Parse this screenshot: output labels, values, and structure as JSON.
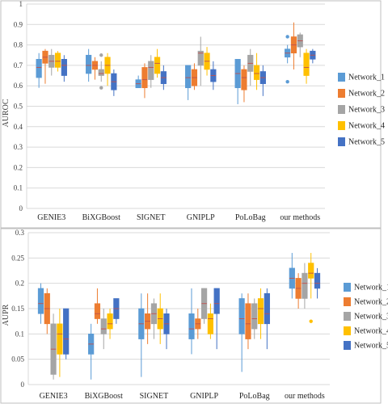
{
  "colors": {
    "Network_1": "#5b9bd5",
    "Network_2": "#ed7d31",
    "Network_3": "#a5a5a5",
    "Network_4": "#ffc000",
    "Network_5": "#4472c4",
    "median": "#c0504d",
    "grid": "#d9d9d9",
    "frame": "#bfbfbf"
  },
  "chart_data": [
    {
      "type": "box",
      "ylabel": "AUROC",
      "ylim": [
        0,
        1
      ],
      "yticks": [
        "0",
        "0.1",
        "0.2",
        "0.3",
        "0.4",
        "0.5",
        "0.6",
        "0.7",
        "0.8",
        "0.9",
        "1"
      ],
      "yticks_values": [
        0,
        0.1,
        0.2,
        0.3,
        0.4,
        0.5,
        0.6,
        0.7,
        0.8,
        0.9,
        1
      ],
      "grid": true,
      "legend_position": "right",
      "categories": [
        "GENIE3",
        "BiXGBoost",
        "SIGNET",
        "GNIPLP",
        "PoLoBag",
        "our methods"
      ],
      "series": [
        {
          "name": "Network_1",
          "boxes": [
            {
              "min": 0.59,
              "q1": 0.64,
              "median": 0.69,
              "q3": 0.73,
              "max": 0.76,
              "outliers": []
            },
            {
              "min": 0.62,
              "q1": 0.66,
              "median": 0.7,
              "q3": 0.75,
              "max": 0.78,
              "outliers": []
            },
            {
              "min": 0.59,
              "q1": 0.59,
              "median": 0.61,
              "q3": 0.63,
              "max": 0.65,
              "outliers": []
            },
            {
              "min": 0.53,
              "q1": 0.59,
              "median": 0.64,
              "q3": 0.7,
              "max": 0.7,
              "outliers": []
            },
            {
              "min": 0.51,
              "q1": 0.59,
              "median": 0.66,
              "q3": 0.73,
              "max": 0.73,
              "outliers": []
            },
            {
              "min": 0.71,
              "q1": 0.74,
              "median": 0.76,
              "q3": 0.78,
              "max": 0.8,
              "outliers": [
                0.84,
                0.62
              ]
            }
          ]
        },
        {
          "name": "Network_2",
          "boxes": [
            {
              "min": 0.61,
              "q1": 0.71,
              "median": 0.74,
              "q3": 0.77,
              "max": 0.78,
              "outliers": []
            },
            {
              "min": 0.63,
              "q1": 0.68,
              "median": 0.7,
              "q3": 0.72,
              "max": 0.74,
              "outliers": []
            },
            {
              "min": 0.54,
              "q1": 0.59,
              "median": 0.63,
              "q3": 0.69,
              "max": 0.71,
              "outliers": []
            },
            {
              "min": 0.58,
              "q1": 0.6,
              "median": 0.64,
              "q3": 0.68,
              "max": 0.71,
              "outliers": []
            },
            {
              "min": 0.52,
              "q1": 0.58,
              "median": 0.64,
              "q3": 0.68,
              "max": 0.7,
              "outliers": []
            },
            {
              "min": 0.68,
              "q1": 0.76,
              "median": 0.8,
              "q3": 0.84,
              "max": 0.91,
              "outliers": []
            }
          ]
        },
        {
          "name": "Network_3",
          "boxes": [
            {
              "min": 0.65,
              "q1": 0.69,
              "median": 0.72,
              "q3": 0.75,
              "max": 0.78,
              "outliers": []
            },
            {
              "min": 0.62,
              "q1": 0.65,
              "median": 0.66,
              "q3": 0.68,
              "max": 0.72,
              "outliers": [
                0.75,
                0.59
              ]
            },
            {
              "min": 0.59,
              "q1": 0.63,
              "median": 0.69,
              "q3": 0.72,
              "max": 0.75,
              "outliers": []
            },
            {
              "min": 0.6,
              "q1": 0.7,
              "median": 0.76,
              "q3": 0.77,
              "max": 0.84,
              "outliers": []
            },
            {
              "min": 0.6,
              "q1": 0.67,
              "median": 0.71,
              "q3": 0.75,
              "max": 0.78,
              "outliers": []
            },
            {
              "min": 0.74,
              "q1": 0.79,
              "median": 0.82,
              "q3": 0.85,
              "max": 0.86,
              "outliers": []
            }
          ]
        },
        {
          "name": "Network_4",
          "boxes": [
            {
              "min": 0.67,
              "q1": 0.69,
              "median": 0.72,
              "q3": 0.76,
              "max": 0.77,
              "outliers": []
            },
            {
              "min": 0.6,
              "q1": 0.66,
              "median": 0.7,
              "q3": 0.74,
              "max": 0.76,
              "outliers": []
            },
            {
              "min": 0.64,
              "q1": 0.66,
              "median": 0.71,
              "q3": 0.74,
              "max": 0.78,
              "outliers": []
            },
            {
              "min": 0.65,
              "q1": 0.68,
              "median": 0.72,
              "q3": 0.76,
              "max": 0.79,
              "outliers": []
            },
            {
              "min": 0.58,
              "q1": 0.63,
              "median": 0.66,
              "q3": 0.7,
              "max": 0.76,
              "outliers": []
            },
            {
              "min": 0.61,
              "q1": 0.65,
              "median": 0.69,
              "q3": 0.76,
              "max": 0.78,
              "outliers": []
            }
          ]
        },
        {
          "name": "Network_5",
          "boxes": [
            {
              "min": 0.62,
              "q1": 0.65,
              "median": 0.7,
              "q3": 0.73,
              "max": 0.75,
              "outliers": []
            },
            {
              "min": 0.55,
              "q1": 0.58,
              "median": 0.62,
              "q3": 0.66,
              "max": 0.68,
              "outliers": []
            },
            {
              "min": 0.58,
              "q1": 0.61,
              "median": 0.64,
              "q3": 0.67,
              "max": 0.7,
              "outliers": []
            },
            {
              "min": 0.58,
              "q1": 0.62,
              "median": 0.65,
              "q3": 0.68,
              "max": 0.72,
              "outliers": []
            },
            {
              "min": 0.55,
              "q1": 0.61,
              "median": 0.64,
              "q3": 0.67,
              "max": 0.7,
              "outliers": []
            },
            {
              "min": 0.71,
              "q1": 0.73,
              "median": 0.75,
              "q3": 0.77,
              "max": 0.78,
              "outliers": []
            }
          ]
        }
      ]
    },
    {
      "type": "box",
      "ylabel": "AUPR",
      "ylim": [
        0,
        0.3
      ],
      "yticks": [
        "0",
        "0.05",
        "0.1",
        "0.15",
        "0.2",
        "0.25",
        "0.3"
      ],
      "yticks_values": [
        0,
        0.05,
        0.1,
        0.15,
        0.2,
        0.25,
        0.3
      ],
      "grid": true,
      "legend_position": "right",
      "categories": [
        "GENIE3",
        "BiXGBoost",
        "SIGNET",
        "GNIPLP",
        "PoLoBag",
        "our methods"
      ],
      "series": [
        {
          "name": "Network_1",
          "boxes": [
            {
              "min": 0.12,
              "q1": 0.14,
              "median": 0.16,
              "q3": 0.19,
              "max": 0.2,
              "outliers": []
            },
            {
              "min": 0.01,
              "q1": 0.06,
              "median": 0.08,
              "q3": 0.1,
              "max": 0.12,
              "outliers": []
            },
            {
              "min": 0.015,
              "q1": 0.09,
              "median": 0.12,
              "q3": 0.15,
              "max": 0.18,
              "outliers": []
            },
            {
              "min": 0.06,
              "q1": 0.09,
              "median": 0.11,
              "q3": 0.14,
              "max": 0.19,
              "outliers": []
            },
            {
              "min": 0.025,
              "q1": 0.1,
              "median": 0.13,
              "q3": 0.17,
              "max": 0.18,
              "outliers": []
            },
            {
              "min": 0.17,
              "q1": 0.19,
              "median": 0.21,
              "q3": 0.23,
              "max": 0.26,
              "outliers": []
            }
          ]
        },
        {
          "name": "Network_2",
          "boxes": [
            {
              "min": 0.1,
              "q1": 0.12,
              "median": 0.15,
              "q3": 0.18,
              "max": 0.19,
              "outliers": []
            },
            {
              "min": 0.12,
              "q1": 0.13,
              "median": 0.14,
              "q3": 0.16,
              "max": 0.19,
              "outliers": []
            },
            {
              "min": 0.08,
              "q1": 0.11,
              "median": 0.125,
              "q3": 0.14,
              "max": 0.18,
              "outliers": []
            },
            {
              "min": 0.09,
              "q1": 0.11,
              "median": 0.12,
              "q3": 0.13,
              "max": 0.15,
              "outliers": []
            },
            {
              "min": 0.07,
              "q1": 0.09,
              "median": 0.12,
              "q3": 0.16,
              "max": 0.18,
              "outliers": []
            },
            {
              "min": 0.15,
              "q1": 0.17,
              "median": 0.19,
              "q3": 0.21,
              "max": 0.22,
              "outliers": []
            }
          ]
        },
        {
          "name": "Network_3",
          "boxes": [
            {
              "min": 0.01,
              "q1": 0.02,
              "median": 0.07,
              "q3": 0.12,
              "max": 0.14,
              "outliers": []
            },
            {
              "min": 0.07,
              "q1": 0.1,
              "median": 0.11,
              "q3": 0.13,
              "max": 0.15,
              "outliers": []
            },
            {
              "min": 0.09,
              "q1": 0.12,
              "median": 0.14,
              "q3": 0.16,
              "max": 0.17,
              "outliers": []
            },
            {
              "min": 0.12,
              "q1": 0.13,
              "median": 0.16,
              "q3": 0.19,
              "max": 0.19,
              "outliers": []
            },
            {
              "min": 0.09,
              "q1": 0.11,
              "median": 0.13,
              "q3": 0.16,
              "max": 0.17,
              "outliers": []
            },
            {
              "min": 0.15,
              "q1": 0.17,
              "median": 0.2,
              "q3": 0.22,
              "max": 0.24,
              "outliers": []
            }
          ]
        },
        {
          "name": "Network_4",
          "boxes": [
            {
              "min": 0.015,
              "q1": 0.06,
              "median": 0.1,
              "q3": 0.12,
              "max": 0.15,
              "outliers": []
            },
            {
              "min": 0.09,
              "q1": 0.11,
              "median": 0.12,
              "q3": 0.14,
              "max": 0.15,
              "outliers": []
            },
            {
              "min": 0.08,
              "q1": 0.11,
              "median": 0.13,
              "q3": 0.15,
              "max": 0.18,
              "outliers": []
            },
            {
              "min": 0.09,
              "q1": 0.1,
              "median": 0.13,
              "q3": 0.14,
              "max": 0.16,
              "outliers": []
            },
            {
              "min": 0.09,
              "q1": 0.12,
              "median": 0.15,
              "q3": 0.17,
              "max": 0.19,
              "outliers": []
            },
            {
              "min": 0.17,
              "q1": 0.21,
              "median": 0.22,
              "q3": 0.24,
              "max": 0.26,
              "outliers": [
                0.125
              ]
            }
          ]
        },
        {
          "name": "Network_5",
          "boxes": [
            {
              "min": 0.05,
              "q1": 0.06,
              "median": 0.09,
              "q3": 0.15,
              "max": 0.15,
              "outliers": []
            },
            {
              "min": 0.12,
              "q1": 0.13,
              "median": 0.15,
              "q3": 0.17,
              "max": 0.17,
              "outliers": []
            },
            {
              "min": 0.07,
              "q1": 0.1,
              "median": 0.12,
              "q3": 0.14,
              "max": 0.15,
              "outliers": []
            },
            {
              "min": 0.07,
              "q1": 0.14,
              "median": 0.16,
              "q3": 0.19,
              "max": 0.19,
              "outliers": []
            },
            {
              "min": 0.07,
              "q1": 0.12,
              "median": 0.14,
              "q3": 0.18,
              "max": 0.19,
              "outliers": []
            },
            {
              "min": 0.17,
              "q1": 0.19,
              "median": 0.2,
              "q3": 0.22,
              "max": 0.23,
              "outliers": []
            }
          ]
        }
      ]
    }
  ]
}
